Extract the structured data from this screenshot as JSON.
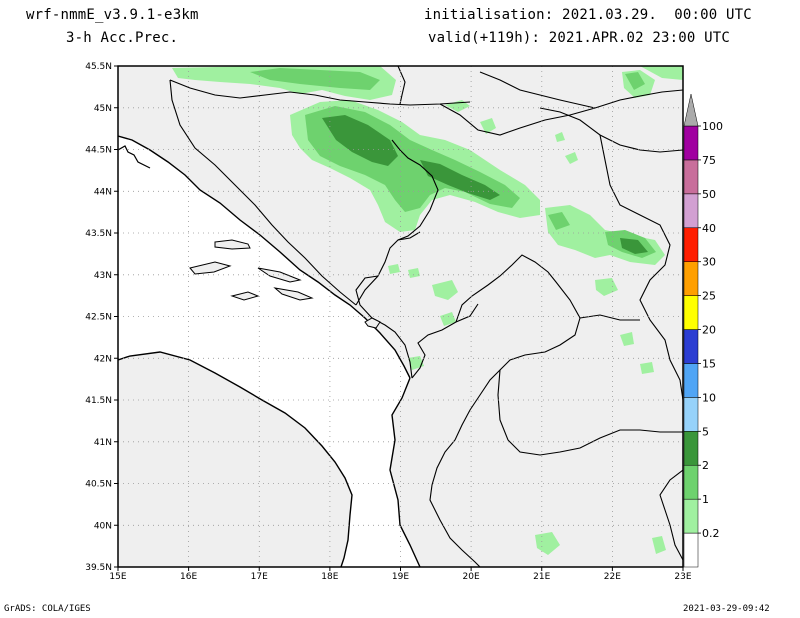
{
  "header": {
    "model": "wrf-nmmE_v3.9.1-e3km",
    "field": "3-h Acc.Prec.",
    "init": "initialisation: 2021.03.29.  00:00 UTC",
    "valid": "valid(+119h): 2021.APR.02 23:00 UTC"
  },
  "map": {
    "lat_range": [
      39.5,
      45.5
    ],
    "lon_range": [
      15,
      23
    ],
    "lat_labels": [
      "45.5N",
      "45N",
      "44.5N",
      "44N",
      "43.5N",
      "43N",
      "42.5N",
      "42N",
      "41.5N",
      "41N",
      "40.5N",
      "40N",
      "39.5N"
    ],
    "lon_labels": [
      "15E",
      "16E",
      "17E",
      "18E",
      "19E",
      "20E",
      "21E",
      "22E",
      "23E"
    ],
    "land_color": "#efefef",
    "sea_color": "#ffffff",
    "gridline_color": "#999999"
  },
  "legend": {
    "levels": [
      "0.2",
      "1",
      "2",
      "5",
      "10",
      "15",
      "20",
      "25",
      "30",
      "40",
      "50",
      "75",
      "100"
    ],
    "colors": [
      "#ffffff",
      "#a0f0a0",
      "#6ed26e",
      "#3a963a",
      "#96d2fa",
      "#50a5f5",
      "#2c3ed2",
      "#ffff00",
      "#ff9f00",
      "#ff1e00",
      "#d2a0d2",
      "#c86e9b",
      "#a000a0",
      "#aaaaaa"
    ]
  },
  "precip_colors": {
    "light": "#a0f0a0",
    "moderate": "#6ed26e",
    "heavy": "#3a963a"
  },
  "footer": {
    "left": "GrADS: COLA/IGES",
    "right": "2021-03-29-09:42"
  }
}
